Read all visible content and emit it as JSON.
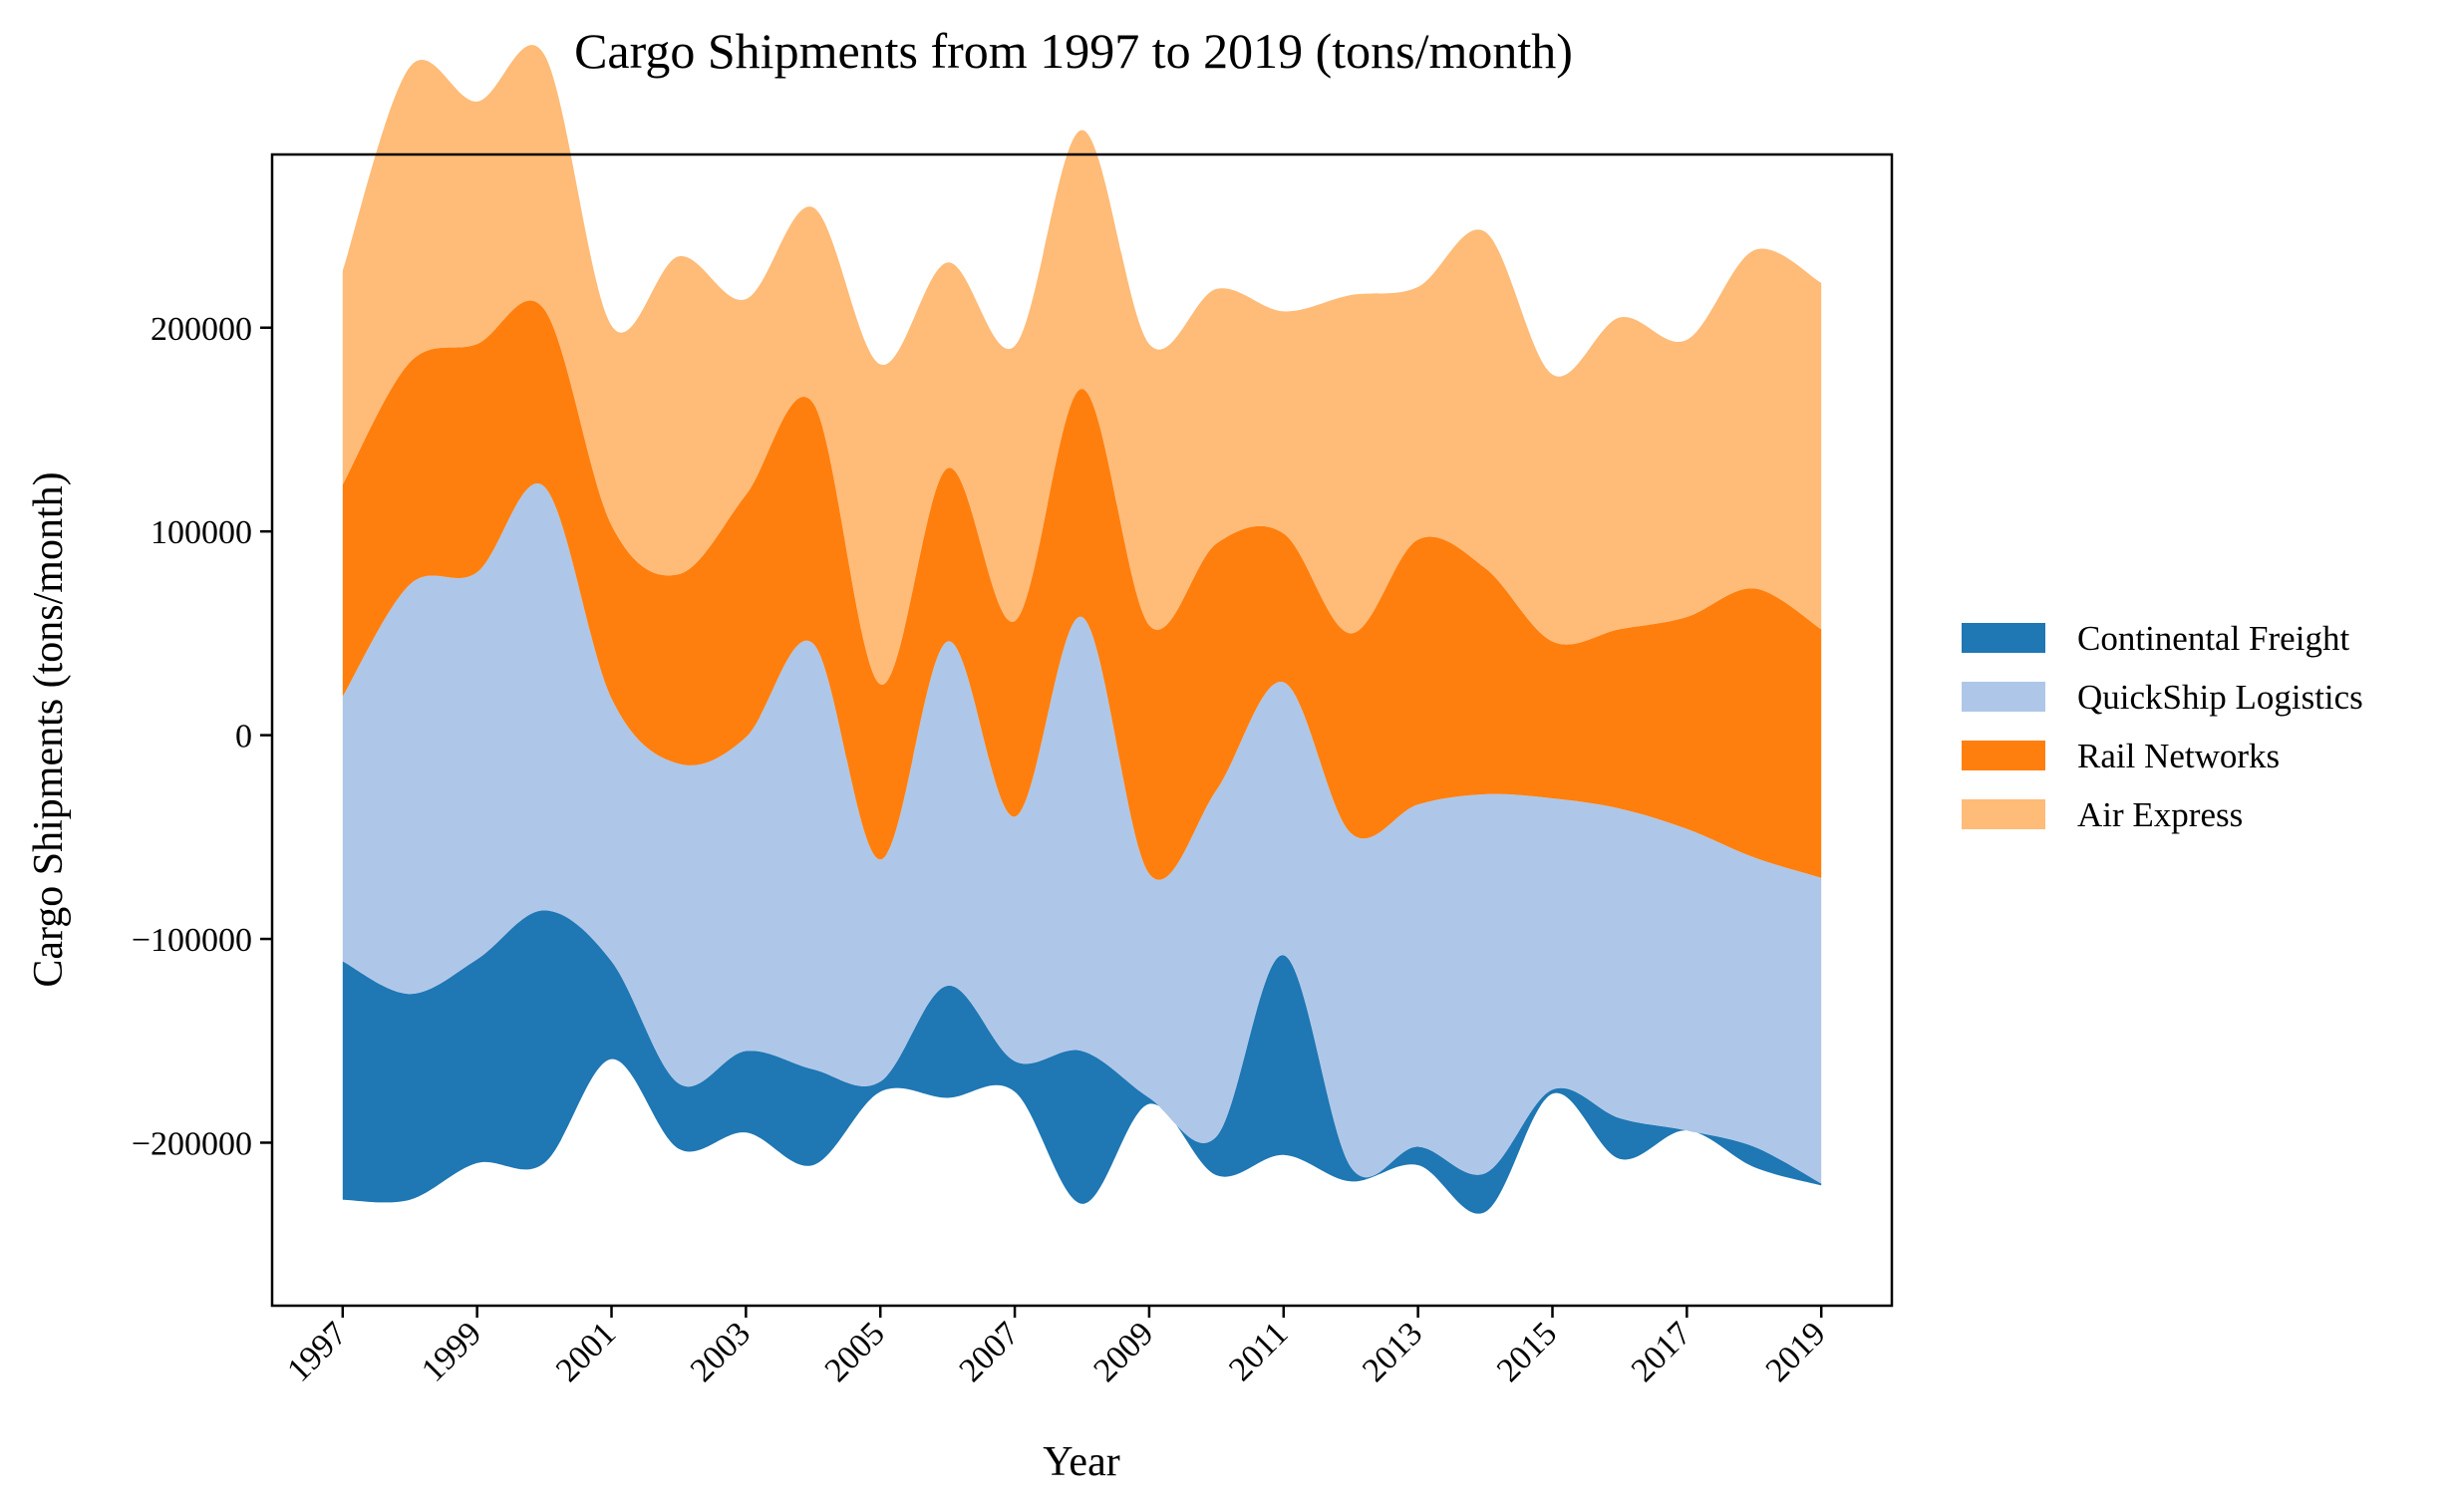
{
  "chart_data": {
    "type": "area",
    "subtype": "streamgraph",
    "title": "Cargo Shipments from 1997 to 2019 (tons/month)",
    "xlabel": "Year",
    "ylabel": "Cargo Shipments (tons/month)",
    "x": [
      1997,
      1998,
      1999,
      2000,
      2001,
      2002,
      2003,
      2004,
      2005,
      2006,
      2007,
      2008,
      2009,
      2010,
      2011,
      2012,
      2013,
      2014,
      2015,
      2016,
      2017,
      2018,
      2019
    ],
    "x_tick_labels": [
      "1997",
      "1999",
      "2001",
      "2003",
      "2005",
      "2007",
      "2009",
      "2011",
      "2013",
      "2015",
      "2017",
      "2019"
    ],
    "y_tick_values": [
      -200000,
      -100000,
      0,
      100000,
      200000
    ],
    "y_tick_labels": [
      "−200000",
      "−100000",
      "0",
      "100000",
      "200000"
    ],
    "ylim": [
      -280000,
      285000
    ],
    "xlim": [
      1995.95,
      2020.05
    ],
    "baseline": [
      -228000,
      -228000,
      -210000,
      -210000,
      -159000,
      -203000,
      -195000,
      -211000,
      -175000,
      -178000,
      -175000,
      -230000,
      -181000,
      -216000,
      -206000,
      -219000,
      -211000,
      -234000,
      -176000,
      -208000,
      -194000,
      -212000,
      -221000
    ],
    "series": [
      {
        "name": "Continental Freight",
        "color": "#1f77b4",
        "values": [
          117000,
          101000,
          100000,
          124000,
          48000,
          32000,
          40000,
          47000,
          5000,
          55000,
          15000,
          75000,
          3000,
          19000,
          98000,
          7000,
          9000,
          19000,
          2000,
          20000,
          0,
          10000,
          1000
        ]
      },
      {
        "name": "QuickShip Logistics",
        "color": "#aec7e8",
        "values": [
          130000,
          201000,
          190000,
          208000,
          129000,
          157000,
          154000,
          209000,
          109000,
          169000,
          120000,
          213000,
          110000,
          170000,
          134000,
          164000,
          168000,
          186000,
          143000,
          152000,
          148000,
          142000,
          150000
        ]
      },
      {
        "name": "Rail Networks",
        "color": "#ff7f0e",
        "values": [
          104000,
          109000,
          112000,
          87000,
          85000,
          93000,
          119000,
          118000,
          86000,
          85000,
          96000,
          112000,
          122000,
          121000,
          73000,
          98000,
          130000,
          111000,
          77000,
          88000,
          104000,
          132000,
          122000
        ]
      },
      {
        "name": "Air Express",
        "color": "#ffbb78",
        "values": [
          105000,
          145000,
          119000,
          125000,
          98000,
          156000,
          96000,
          96000,
          157000,
          101000,
          135000,
          127000,
          138000,
          125000,
          109000,
          166000,
          124000,
          165000,
          131000,
          153000,
          136000,
          166000,
          170000
        ]
      }
    ],
    "grid": false,
    "legend_position": "right"
  }
}
